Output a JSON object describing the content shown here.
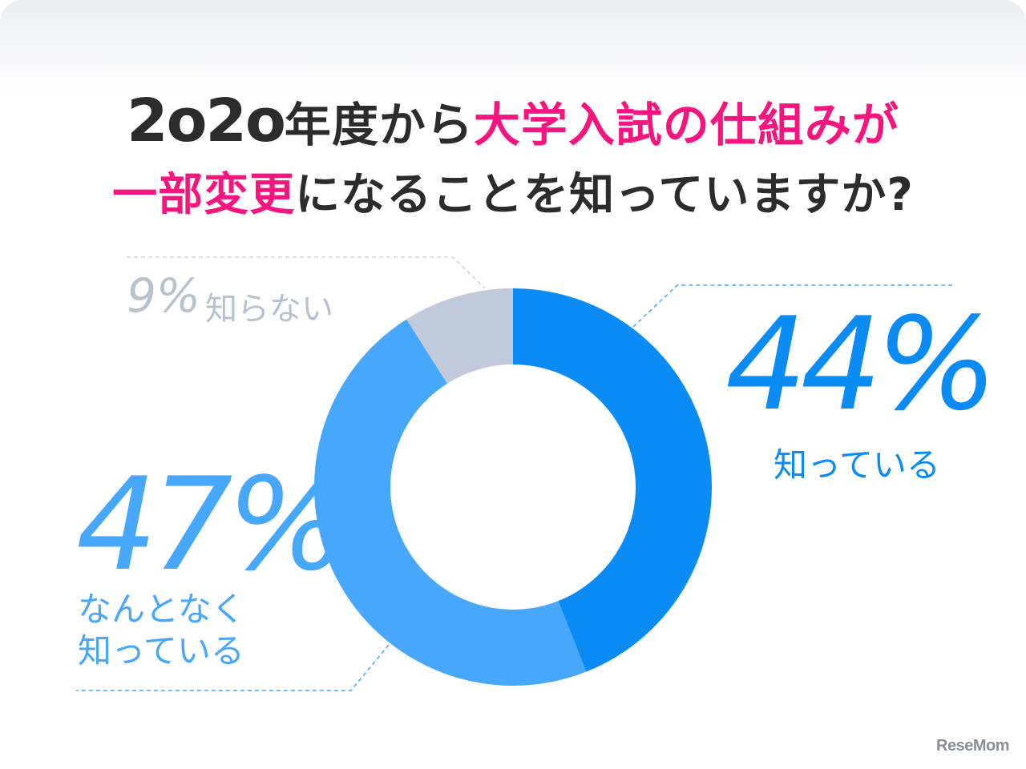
{
  "title": {
    "line1_year": "2o2o",
    "line1_mid": "年度から",
    "line1_highlight": "大学入試の仕組みが",
    "line2_highlight": "一部変更",
    "line2_rest": "になることを知っていますか?"
  },
  "chart_data": {
    "type": "pie",
    "style": "donut",
    "title": "2o2o年度から大学入試の仕組みが一部変更になることを知っていますか?",
    "slices": [
      {
        "label": "知っている",
        "value": 44,
        "color": "#0a8cf4"
      },
      {
        "label": "なんとなく知っている",
        "value": 47,
        "color": "#47a8fb"
      },
      {
        "label": "知らない",
        "value": 9,
        "color": "#c0cadb"
      }
    ],
    "percent_labels": [
      "44%",
      "47%",
      "9%"
    ]
  },
  "labels": {
    "known_pct": "44%",
    "known_text": "知っている",
    "vague_pct": "47%",
    "vague_line1": "なんとなく",
    "vague_line2": "知っている",
    "unknown_pct": "9%",
    "unknown_text": "知らない"
  },
  "logo": {
    "text": "ReseMom"
  }
}
